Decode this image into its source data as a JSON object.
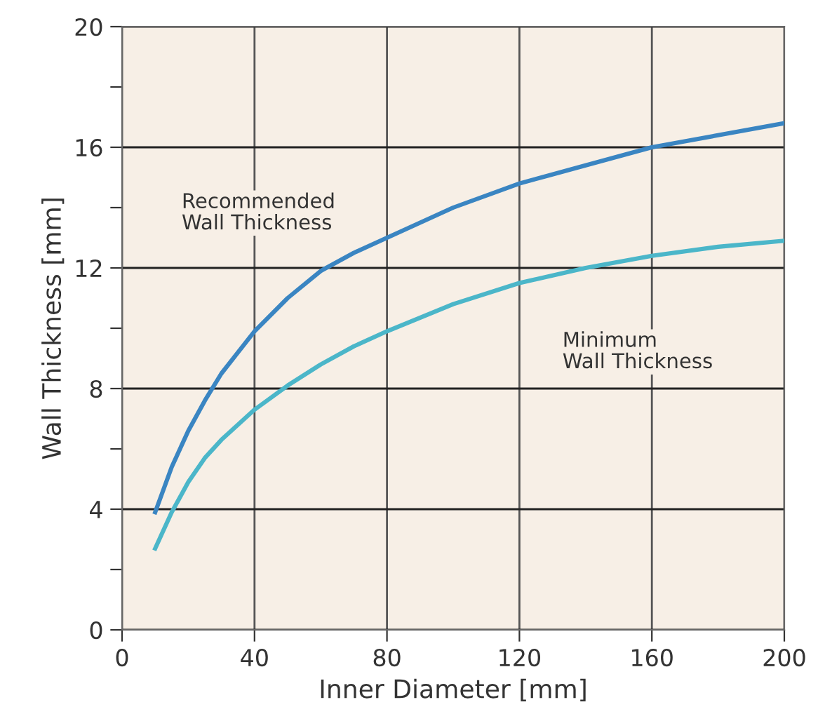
{
  "chart_data": {
    "type": "line",
    "xlabel": "Inner Diameter [mm]",
    "ylabel": "Wall Thickness [mm]",
    "xlim": [
      0,
      200
    ],
    "xticks": [
      0,
      40,
      80,
      120,
      160,
      200
    ],
    "ylim": [
      0,
      20
    ],
    "yticks": [
      0,
      {
        "value": 2,
        "label": null
      },
      4,
      {
        "value": 6,
        "label": null
      },
      8,
      {
        "value": 10,
        "label": null
      },
      12,
      {
        "value": 14,
        "label": null
      },
      16,
      {
        "value": 18,
        "label": null
      },
      20
    ],
    "grid": true,
    "legend": false,
    "marker": "none",
    "line_style": "solid",
    "series": [
      {
        "name": "Recommended\nWall Thickness",
        "color": "#3a85c2",
        "x": [
          10,
          15,
          20,
          25,
          30,
          40,
          50,
          60,
          70,
          80,
          100,
          120,
          140,
          160,
          180,
          200
        ],
        "values": [
          3.9,
          5.4,
          6.6,
          7.6,
          8.5,
          9.9,
          11.0,
          11.9,
          12.5,
          13.0,
          14.0,
          14.8,
          15.4,
          16.0,
          16.4,
          16.8
        ]
      },
      {
        "name": "Minimum\nWall Thickness",
        "color": "#4bb6c9",
        "x": [
          10,
          15,
          20,
          25,
          30,
          40,
          50,
          60,
          70,
          80,
          100,
          120,
          140,
          160,
          180,
          200
        ],
        "values": [
          2.7,
          3.9,
          4.9,
          5.7,
          6.3,
          7.3,
          8.1,
          8.8,
          9.4,
          9.9,
          10.8,
          11.5,
          12.0,
          12.4,
          12.7,
          12.9
        ]
      }
    ]
  }
}
